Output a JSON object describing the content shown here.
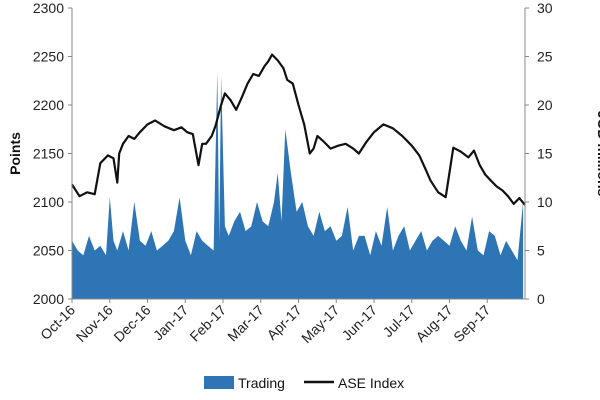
{
  "chart_data": {
    "type": "line",
    "ylabel_left": "Points",
    "ylabel_right": "JOD millions",
    "ylim_left": [
      2000,
      2300
    ],
    "yticks_left": [
      "2000",
      "2050",
      "2100",
      "2150",
      "2200",
      "2250",
      "2300"
    ],
    "ylim_right": [
      0,
      30
    ],
    "yticks_right": [
      "0",
      "5",
      "10",
      "15",
      "20",
      "25",
      "30"
    ],
    "xlim": [
      0,
      12
    ],
    "x_tick_labels": [
      "Oct-16",
      "Nov-16",
      "Dec-16",
      "Jan-17",
      "Feb-17",
      "Mar-17",
      "Apr-17",
      "May-17",
      "Jun-17",
      "Jul-17",
      "Aug-17",
      "Sep-17"
    ],
    "grid": false,
    "legend_position": "bottom",
    "series": [
      {
        "name": "Trading",
        "type": "area",
        "axis": "right",
        "color": "#2E75B6",
        "x": [
          0.0,
          0.15,
          0.3,
          0.45,
          0.6,
          0.75,
          0.9,
          1.0,
          1.1,
          1.2,
          1.35,
          1.5,
          1.65,
          1.8,
          1.95,
          2.1,
          2.25,
          2.4,
          2.55,
          2.7,
          2.85,
          3.0,
          3.15,
          3.3,
          3.45,
          3.6,
          3.75,
          3.85,
          3.9,
          3.95,
          4.05,
          4.15,
          4.3,
          4.45,
          4.6,
          4.75,
          4.9,
          5.05,
          5.2,
          5.35,
          5.45,
          5.55,
          5.65,
          5.8,
          5.95,
          6.1,
          6.25,
          6.4,
          6.55,
          6.7,
          6.85,
          7.0,
          7.15,
          7.3,
          7.45,
          7.6,
          7.75,
          7.9,
          8.05,
          8.2,
          8.35,
          8.5,
          8.65,
          8.8,
          8.95,
          9.1,
          9.25,
          9.4,
          9.55,
          9.7,
          9.85,
          10.0,
          10.15,
          10.3,
          10.45,
          10.6,
          10.75,
          10.9,
          11.05,
          11.2,
          11.35,
          11.5,
          11.65,
          11.8,
          11.95
        ],
        "values": [
          6.0,
          5.0,
          4.5,
          6.5,
          5.0,
          5.5,
          4.5,
          10.5,
          6.0,
          5.0,
          7.0,
          5.0,
          10.0,
          6.0,
          5.5,
          7.0,
          5.0,
          5.5,
          6.0,
          7.0,
          10.5,
          6.0,
          4.5,
          7.0,
          6.0,
          5.5,
          5.0,
          23.5,
          6.0,
          23.0,
          7.5,
          6.5,
          8.0,
          9.0,
          7.0,
          7.5,
          10.0,
          8.0,
          7.5,
          10.0,
          13.0,
          8.0,
          17.5,
          13.0,
          9.0,
          10.0,
          7.5,
          6.5,
          9.0,
          7.0,
          7.5,
          6.0,
          6.5,
          9.5,
          5.0,
          6.5,
          6.5,
          4.5,
          7.0,
          5.5,
          9.5,
          5.0,
          6.5,
          7.5,
          5.0,
          6.0,
          7.0,
          5.0,
          6.0,
          6.5,
          6.0,
          5.5,
          7.5,
          6.0,
          5.0,
          8.5,
          5.0,
          4.5,
          7.0,
          6.5,
          4.5,
          6.0,
          5.0,
          4.0,
          10.0
        ]
      },
      {
        "name": "ASE Index",
        "type": "line",
        "axis": "left",
        "color": "#111111",
        "x": [
          0.0,
          0.2,
          0.4,
          0.6,
          0.75,
          0.95,
          1.1,
          1.2,
          1.25,
          1.35,
          1.5,
          1.65,
          1.8,
          2.0,
          2.2,
          2.45,
          2.7,
          2.9,
          3.05,
          3.2,
          3.35,
          3.45,
          3.55,
          3.7,
          3.8,
          3.95,
          4.05,
          4.2,
          4.35,
          4.5,
          4.65,
          4.8,
          4.95,
          5.1,
          5.2,
          5.3,
          5.45,
          5.6,
          5.7,
          5.85,
          6.0,
          6.15,
          6.3,
          6.4,
          6.5,
          6.65,
          6.85,
          7.05,
          7.25,
          7.45,
          7.6,
          7.8,
          8.0,
          8.25,
          8.5,
          8.75,
          9.0,
          9.2,
          9.35,
          9.5,
          9.7,
          9.9,
          10.1,
          10.3,
          10.5,
          10.65,
          10.8,
          10.95,
          11.1,
          11.25,
          11.4,
          11.55,
          11.7,
          11.85,
          12.0
        ],
        "values": [
          2118,
          2106,
          2110,
          2108,
          2140,
          2148,
          2145,
          2120,
          2150,
          2160,
          2168,
          2165,
          2172,
          2180,
          2184,
          2178,
          2174,
          2177,
          2172,
          2170,
          2138,
          2160,
          2160,
          2168,
          2178,
          2200,
          2212,
          2205,
          2195,
          2208,
          2222,
          2232,
          2230,
          2240,
          2245,
          2252,
          2246,
          2238,
          2226,
          2222,
          2200,
          2180,
          2150,
          2155,
          2168,
          2163,
          2155,
          2158,
          2160,
          2155,
          2150,
          2162,
          2172,
          2180,
          2176,
          2168,
          2158,
          2148,
          2135,
          2122,
          2110,
          2105,
          2156,
          2152,
          2146,
          2153,
          2138,
          2128,
          2122,
          2116,
          2112,
          2106,
          2098,
          2104,
          2097
        ]
      }
    ]
  }
}
